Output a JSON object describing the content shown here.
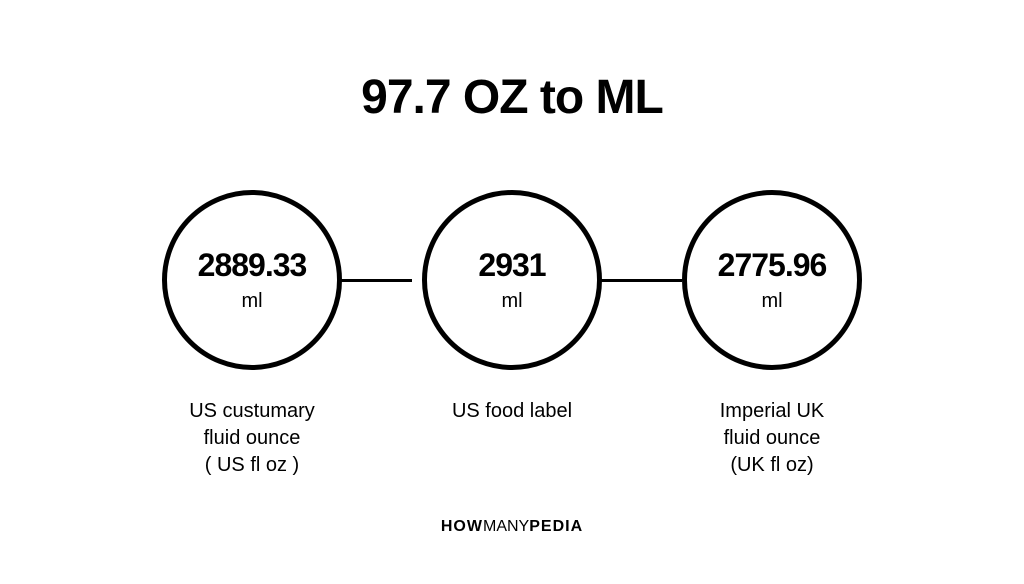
{
  "title": "97.7 OZ to ML",
  "background_color": "#ffffff",
  "text_color": "#000000",
  "circle_border_color": "#000000",
  "circle_border_width": 5,
  "title_fontsize": 48,
  "value_fontsize": 32,
  "unit_fontsize": 20,
  "label_fontsize": 20,
  "circles": [
    {
      "value": "2889.33",
      "unit": "ml",
      "label": "US custumary\nfluid ounce\n( US fl oz )"
    },
    {
      "value": "2931",
      "unit": "ml",
      "label": "US food label"
    },
    {
      "value": "2775.96",
      "unit": "ml",
      "label": "Imperial UK\nfluid ounce\n(UK fl oz)"
    }
  ],
  "brand_prefix": "HOW",
  "brand_mid": "MANY",
  "brand_suffix": "PEDIA"
}
